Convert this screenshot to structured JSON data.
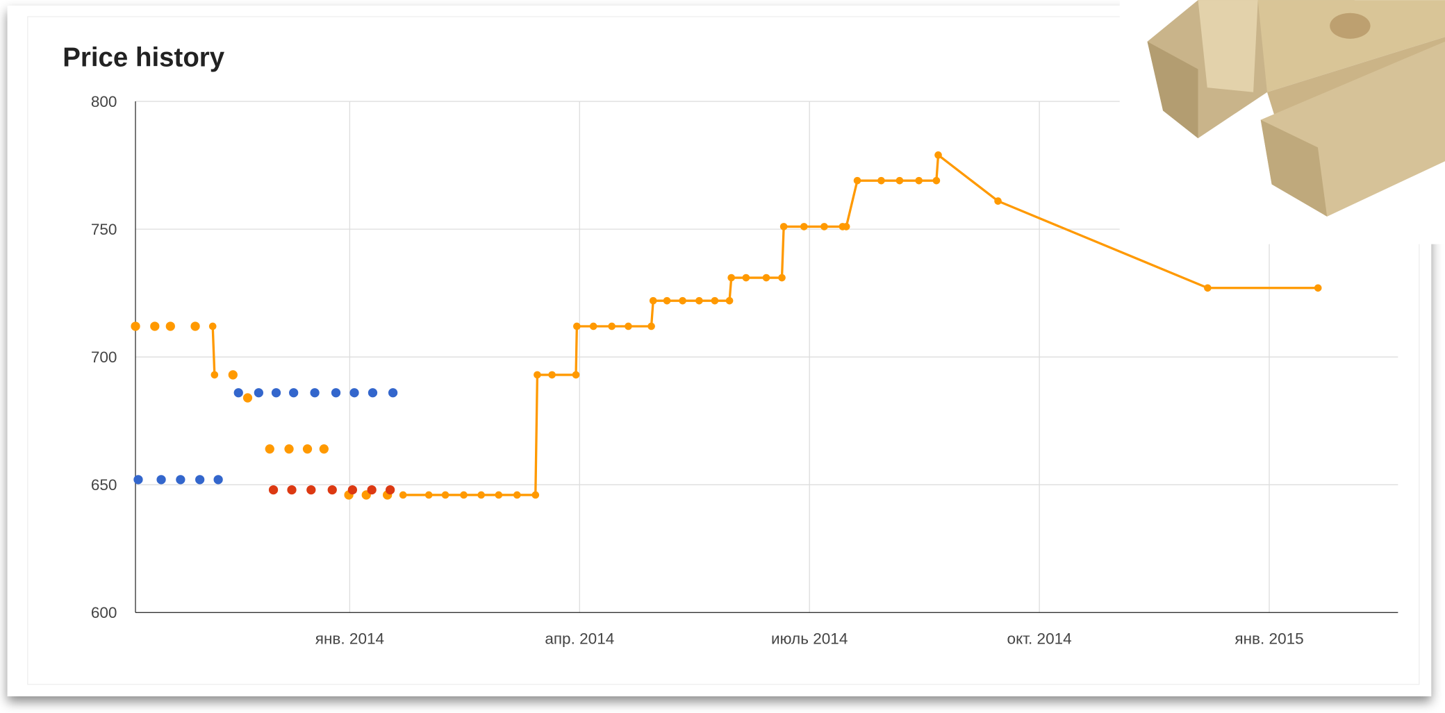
{
  "chart_data": {
    "type": "line",
    "title": "Price history",
    "xlim": [
      2013.767,
      2015.14
    ],
    "ylim": [
      600,
      800
    ],
    "xticks": [
      {
        "value": 2014,
        "label": "янв. 2014"
      },
      {
        "value": 2014.25,
        "label": "апр. 2014"
      },
      {
        "value": 2014.5,
        "label": "июль 2014"
      },
      {
        "value": 2014.75,
        "label": "окт. 2014"
      },
      {
        "value": 2015,
        "label": "янв. 2015"
      }
    ],
    "yticks": [
      600,
      650,
      700,
      750,
      800
    ],
    "grid": true,
    "series": [
      {
        "color": "#ff9900",
        "line": true,
        "x": [
          2013.851,
          2013.853,
          null,
          2014.058,
          2014.086,
          2014.104,
          2014.124,
          2014.143,
          2014.162,
          2014.182,
          2014.202,
          2014.204,
          2014.22,
          2014.246,
          2014.247,
          2014.265,
          2014.285,
          2014.303,
          2014.328,
          2014.33,
          2014.345,
          2014.362,
          2014.38,
          2014.397,
          2014.413,
          2014.415,
          2014.431,
          2014.453,
          2014.47,
          2014.472,
          2014.494,
          2014.516,
          2014.536,
          2014.54,
          2014.552,
          2014.578,
          2014.598,
          2014.619,
          2014.638,
          2014.64,
          2014.705,
          2014.933,
          2015.053
        ],
        "values": [
          712,
          693,
          null,
          646,
          646,
          646,
          646,
          646,
          646,
          646,
          646,
          693,
          693,
          693,
          712,
          712,
          712,
          712,
          712,
          722,
          722,
          722,
          722,
          722,
          722,
          731,
          731,
          731,
          731,
          751,
          751,
          751,
          751,
          751,
          769,
          769,
          769,
          769,
          769,
          779,
          761,
          727,
          727
        ]
      },
      {
        "color": "#ff9900",
        "line": false,
        "x": [
          2013.767,
          2013.788,
          2013.805,
          2013.832,
          2013.873,
          2013.889,
          2013.913,
          2013.934,
          2013.954,
          2013.972,
          2013.999,
          2014.018,
          2014.041
        ],
        "values": [
          712,
          712,
          712,
          712,
          693,
          684,
          664,
          664,
          664,
          664,
          646,
          646,
          646
        ]
      },
      {
        "color": "#3366cc",
        "line": false,
        "x": [
          2013.77,
          2013.795,
          2013.816,
          2013.837,
          2013.857,
          2013.879,
          2013.901,
          2013.92,
          2013.939,
          2013.962,
          2013.985,
          2014.005,
          2014.025,
          2014.047
        ],
        "values": [
          652,
          652,
          652,
          652,
          652,
          686,
          686,
          686,
          686,
          686,
          686,
          686,
          686,
          686
        ]
      },
      {
        "color": "#dc3912",
        "line": false,
        "x": [
          2013.917,
          2013.937,
          2013.958,
          2013.981,
          2014.003,
          2014.024,
          2014.044
        ],
        "values": [
          648,
          648,
          648,
          648,
          648,
          648,
          648
        ]
      }
    ]
  }
}
